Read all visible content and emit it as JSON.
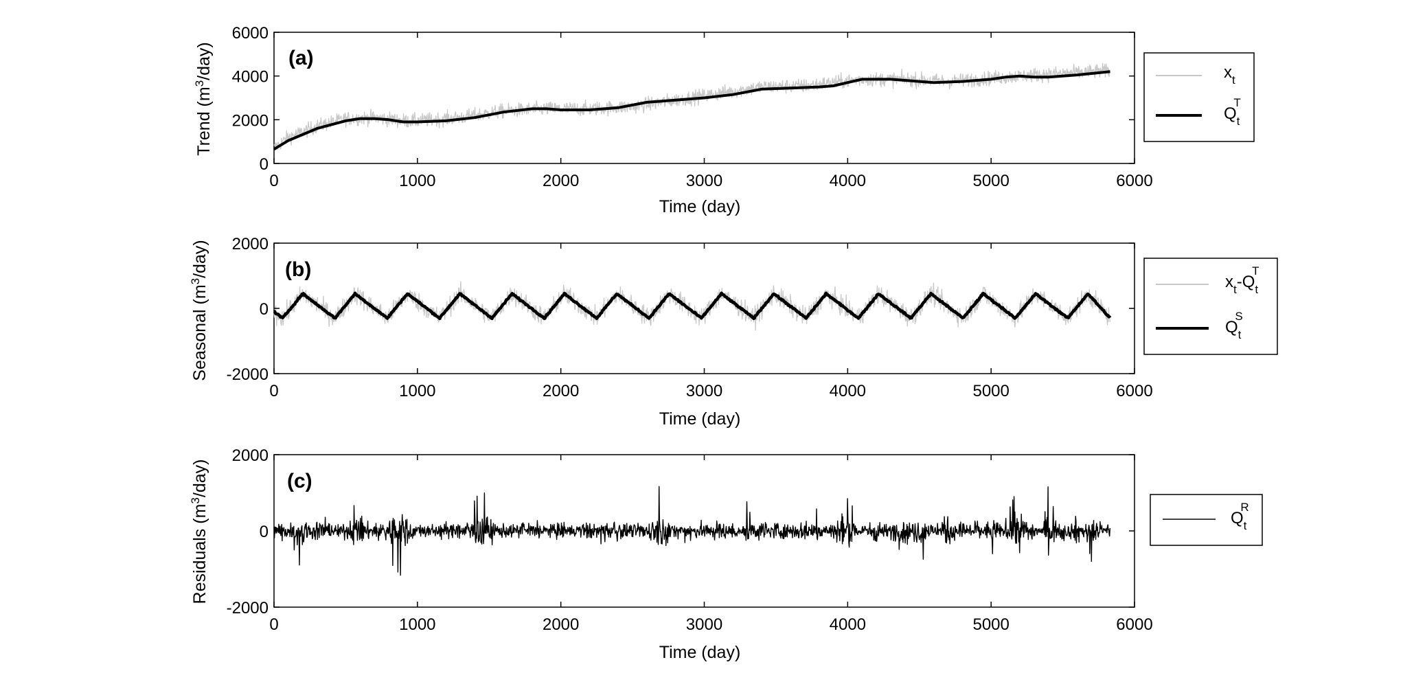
{
  "figure": {
    "panels": [
      {
        "id": "a",
        "panel_label": "(a)",
        "ylabel_main": "Trend (m",
        "ylabel_sup": "3",
        "ylabel_tail": "/day)",
        "xlabel": "Time (day)",
        "legend": [
          {
            "base": "x",
            "sub": "t",
            "sup": "",
            "rest": "",
            "rest_sub": "",
            "rest_sup": ""
          },
          {
            "base": "Q",
            "sub": "t",
            "sup": "T",
            "rest": "",
            "rest_sub": "",
            "rest_sup": ""
          }
        ]
      },
      {
        "id": "b",
        "panel_label": "(b)",
        "ylabel_main": "Seasonal (m",
        "ylabel_sup": "3",
        "ylabel_tail": "/day)",
        "xlabel": "Time (day)",
        "legend": [
          {
            "base": "x",
            "sub": "t",
            "sup": "",
            "rest": "-Q",
            "rest_sub": "t",
            "rest_sup": "T"
          },
          {
            "base": "Q",
            "sub": "t",
            "sup": "S",
            "rest": "",
            "rest_sub": "",
            "rest_sup": ""
          }
        ]
      },
      {
        "id": "c",
        "panel_label": "(c)",
        "ylabel_main": "Residuals (m",
        "ylabel_sup": "3",
        "ylabel_tail": "/day)",
        "xlabel": "Time (day)",
        "legend": [
          {
            "base": "Q",
            "sub": "t",
            "sup": "R",
            "rest": "",
            "rest_sub": "",
            "rest_sup": ""
          }
        ]
      }
    ]
  },
  "chart_data": [
    {
      "type": "line",
      "panel": "(a)",
      "xlabel": "Time (day)",
      "ylabel": "Trend (m3/day)",
      "xlim": [
        0,
        6000
      ],
      "ylim": [
        0,
        6000
      ],
      "xticks": [
        0,
        1000,
        2000,
        3000,
        4000,
        5000,
        6000
      ],
      "yticks": [
        0,
        2000,
        4000,
        6000
      ],
      "grid": false,
      "legend_position": "outside-right",
      "series": [
        {
          "name": "x_t",
          "color": "#c8c8c8",
          "style": "noisy",
          "noise_amplitude": 550,
          "x": [
            0,
            100,
            300,
            500,
            700,
            900,
            1000,
            1300,
            1600,
            1900,
            2200,
            2500,
            2800,
            3100,
            3400,
            3700,
            4100,
            4400,
            4700,
            5000,
            5300,
            5600,
            5830
          ],
          "y": [
            700,
            1200,
            1700,
            2050,
            2100,
            1950,
            1950,
            2100,
            2400,
            2500,
            2500,
            2600,
            2900,
            3200,
            3500,
            3550,
            3850,
            3850,
            3750,
            3900,
            4050,
            4150,
            4250
          ]
        },
        {
          "name": "Q_t^T",
          "color": "#000000",
          "x": [
            0,
            100,
            300,
            500,
            600,
            700,
            800,
            900,
            1000,
            1200,
            1400,
            1600,
            1800,
            1900,
            2000,
            2200,
            2400,
            2600,
            2800,
            3000,
            3200,
            3400,
            3600,
            3800,
            3900,
            4000,
            4100,
            4200,
            4300,
            4400,
            4600,
            4800,
            5000,
            5100,
            5200,
            5300,
            5400,
            5600,
            5830
          ],
          "y": [
            650,
            1050,
            1600,
            1950,
            2050,
            2050,
            2000,
            1900,
            1900,
            1950,
            2100,
            2350,
            2500,
            2500,
            2450,
            2450,
            2550,
            2800,
            2900,
            3000,
            3150,
            3400,
            3450,
            3500,
            3550,
            3700,
            3850,
            3850,
            3850,
            3800,
            3700,
            3750,
            3850,
            3950,
            4000,
            3950,
            3950,
            4050,
            4200
          ]
        }
      ]
    },
    {
      "type": "line",
      "panel": "(b)",
      "xlabel": "Time (day)",
      "ylabel": "Seasonal (m3/day)",
      "xlim": [
        0,
        6000
      ],
      "ylim": [
        -2000,
        2000
      ],
      "xticks": [
        0,
        1000,
        2000,
        3000,
        4000,
        5000,
        6000
      ],
      "yticks": [
        -2000,
        0,
        2000
      ],
      "grid": false,
      "legend_position": "outside-right",
      "series": [
        {
          "name": "x_t-Q_t^T",
          "color": "#c8c8c8",
          "style": "noisy-around-seasonal",
          "noise_amplitude": 500,
          "x": [
            0,
            5830
          ],
          "y": [
            0,
            0
          ]
        },
        {
          "name": "Q_t^S",
          "color": "#000000",
          "period_days": 365,
          "peak_day": 200,
          "trough_day": 60,
          "x": [
            0,
            60,
            200,
            425,
            565,
            790,
            930,
            1155,
            1295,
            1520,
            1660,
            1885,
            2025,
            2250,
            2390,
            2615,
            2755,
            2980,
            3120,
            3345,
            3485,
            3710,
            3850,
            4075,
            4215,
            4440,
            4580,
            4805,
            4945,
            5170,
            5310,
            5535,
            5675,
            5830
          ],
          "y": [
            -100,
            -300,
            450,
            -300,
            450,
            -300,
            450,
            -300,
            450,
            -300,
            450,
            -300,
            450,
            -300,
            450,
            -300,
            450,
            -300,
            450,
            -300,
            450,
            -300,
            450,
            -300,
            450,
            -300,
            450,
            -300,
            450,
            -300,
            450,
            -300,
            450,
            -300
          ]
        }
      ]
    },
    {
      "type": "line",
      "panel": "(c)",
      "xlabel": "Time (day)",
      "ylabel": "Residuals (m3/day)",
      "xlim": [
        0,
        6000
      ],
      "ylim": [
        -2000,
        2000
      ],
      "xticks": [
        0,
        1000,
        2000,
        3000,
        4000,
        5000,
        6000
      ],
      "yticks": [
        -2000,
        0,
        2000
      ],
      "grid": false,
      "legend_position": "outside-right",
      "series": [
        {
          "name": "Q_t^R",
          "color": "#000000",
          "style": "noise",
          "x": [
            0,
            50,
            200,
            300,
            450,
            600,
            700,
            900,
            1000,
            1200,
            1400,
            1450,
            1600,
            1800,
            2000,
            2200,
            2300,
            2400,
            2500,
            2600,
            2700,
            2800,
            2900,
            3000,
            3100,
            3200,
            3300,
            3320,
            3400,
            3500,
            3700,
            3800,
            3960,
            4000,
            4200,
            4400,
            4500,
            4700,
            4800,
            4900,
            5000,
            5200,
            5350,
            5400,
            5500,
            5600,
            5700,
            5830
          ],
          "y": [
            200,
            500,
            -1150,
            700,
            -200,
            1000,
            -300,
            -1250,
            200,
            -300,
            800,
            1150,
            -200,
            400,
            -300,
            300,
            -500,
            500,
            -200,
            400,
            1300,
            -400,
            700,
            -500,
            600,
            -400,
            800,
            1150,
            -700,
            500,
            -500,
            800,
            -1250,
            900,
            -600,
            1000,
            -1000,
            900,
            -500,
            700,
            -700,
            1300,
            -300,
            1250,
            -600,
            900,
            -800,
            300
          ]
        }
      ]
    }
  ]
}
